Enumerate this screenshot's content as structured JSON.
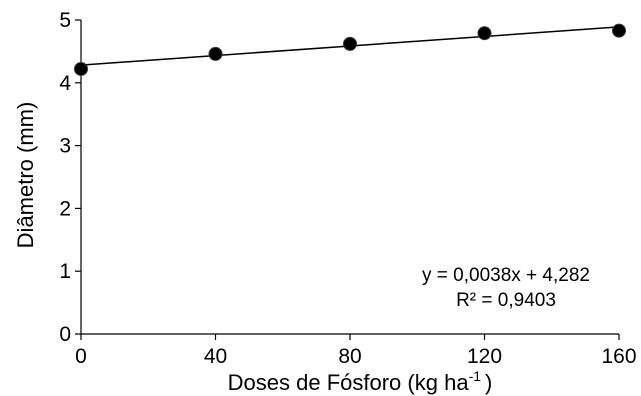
{
  "chart_data": {
    "type": "scatter",
    "xlabel": "Doses de Fósforo (kg ha",
    "xlabel_superscript": "-1",
    "xlabel_suffix": ")",
    "ylabel": "Diâmetro (mm)",
    "xlim": [
      0,
      160
    ],
    "ylim": [
      0,
      5
    ],
    "x_ticks": [
      0,
      40,
      80,
      120,
      160
    ],
    "y_ticks": [
      0,
      1,
      2,
      3,
      4,
      5
    ],
    "grid": false,
    "legend": "none",
    "series": [
      {
        "x": [
          0,
          40,
          80,
          120,
          160
        ],
        "y": [
          4.22,
          4.46,
          4.62,
          4.79,
          4.83
        ],
        "marker": "circle",
        "color": "#000000"
      }
    ],
    "trendline": {
      "type": "linear",
      "slope": 0.0038,
      "intercept": 4.282,
      "color": "#000000"
    },
    "equation": "y = 0,0038x + 4,282",
    "r_squared": "R² = 0,9403"
  }
}
